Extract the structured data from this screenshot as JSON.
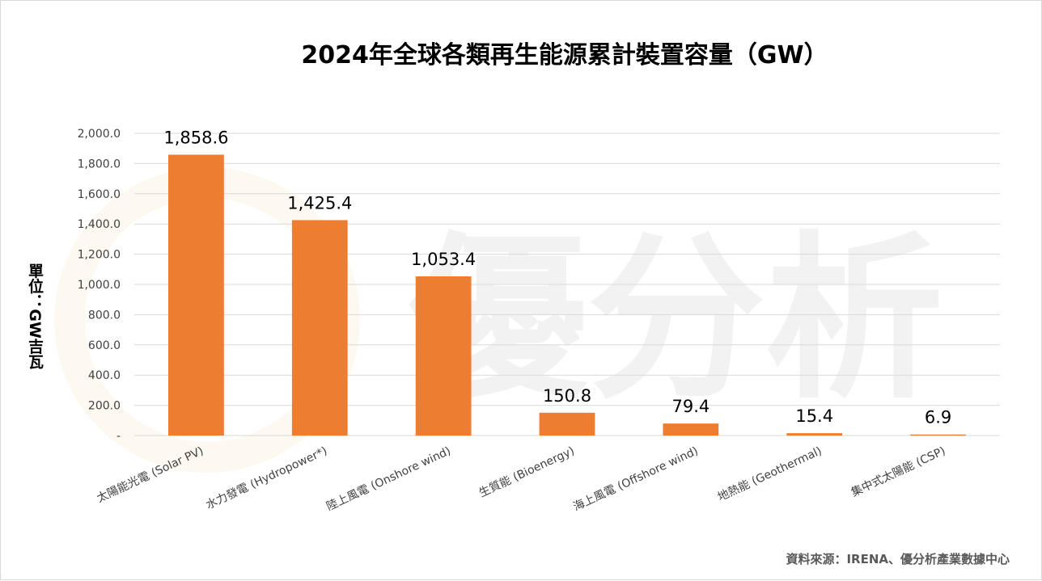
{
  "chart_data": {
    "type": "bar",
    "title": "2024年全球各類再生能源累計裝置容量（GW）",
    "ylabel": "單位：GW吉瓦",
    "categories": [
      "太陽能光電 (Solar PV)",
      "水力發電 (Hydropower*)",
      "陸上風電 (Onshore wind)",
      "生質能 (Bioenergy)",
      "海上風電 (Offshore wind)",
      "地熱能 (Geothermal)",
      "集中式太陽能 (CSP)"
    ],
    "values": [
      1858.6,
      1425.4,
      1053.4,
      150.8,
      79.4,
      15.4,
      6.9
    ],
    "data_labels": [
      "1,858.6",
      "1,425.4",
      "1,053.4",
      "150.8",
      "79.4",
      "15.4",
      "6.9"
    ],
    "yticks": [
      "-",
      "200.0",
      "400.0",
      "600.0",
      "800.0",
      "1,000.0",
      "1,200.0",
      "1,400.0",
      "1,600.0",
      "1,800.0",
      "2,000.0"
    ],
    "ylim": [
      0,
      2000
    ],
    "grid": true,
    "legend": "none",
    "bar_color": "#ED7D31",
    "source": "資料來源：IRENA、優分析產業數據中心",
    "watermark": "優分析"
  }
}
